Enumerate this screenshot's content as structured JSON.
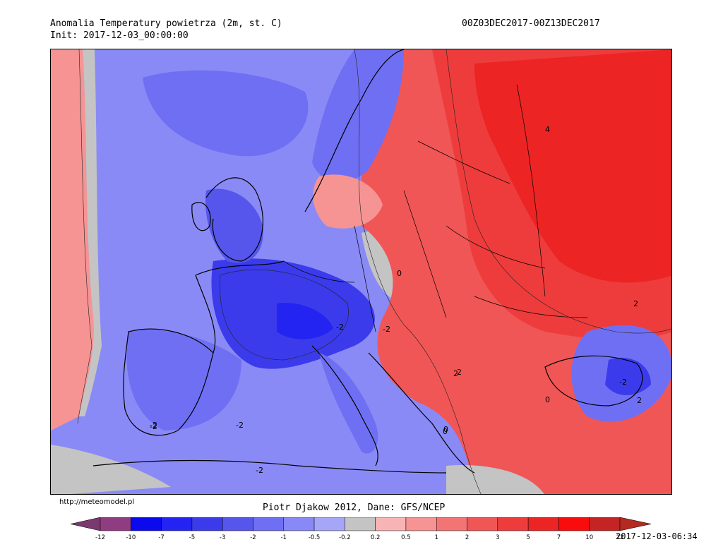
{
  "header": {
    "title": "Anomalia Temperatury powietrza (2m, st. C)",
    "init": "Init: 2017-12-03_00:00:00",
    "period": "00Z03DEC2017-00Z13DEC2017"
  },
  "footer": {
    "url": "http://meteomodel.pl",
    "credits": "Piotr Djakow 2012, Dane: GFS/NCEP",
    "timestamp": "2017-12-03-06:34"
  },
  "map": {
    "contour_labels": [
      "-2",
      "-2",
      "-2",
      "-2",
      "-2",
      "0",
      "0",
      "0",
      "2",
      "2",
      "2",
      "4",
      "-2",
      "-2",
      "2",
      "0"
    ]
  },
  "legend": {
    "boundaries": [
      "-12",
      "-10",
      "-7",
      "-5",
      "-3",
      "-2",
      "-1",
      "-0.5",
      "-0.2",
      "0.2",
      "0.5",
      "1",
      "2",
      "3",
      "5",
      "7",
      "10",
      "12"
    ],
    "low_end_color": "#7a3a70",
    "high_end_color": "#b42a20",
    "colors": [
      "#903c80",
      "#0a0aec",
      "#2424f2",
      "#3b3bec",
      "#5656ec",
      "#6f6ff4",
      "#8888f6",
      "#a6a6f8",
      "#c4c4c4",
      "#f8b4b4",
      "#f69494",
      "#f37474",
      "#f05656",
      "#ee3c3c",
      "#ec2424",
      "#f80c0c",
      "#c42424"
    ]
  }
}
